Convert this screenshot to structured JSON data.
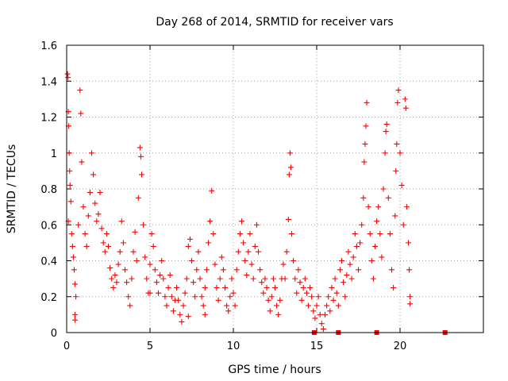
{
  "chart_data": {
    "type": "scatter",
    "title": "Day 268 of 2014, SRMTID for receiver vars",
    "xlabel": "GPS time / hours",
    "ylabel": "SRMTID / TECUs",
    "xlim": [
      0,
      25
    ],
    "ylim": [
      0,
      1.6
    ],
    "x_ticks": [
      0,
      5,
      10,
      15,
      20
    ],
    "x_tick_labels": [
      "0",
      "5",
      "10",
      "15",
      "20"
    ],
    "y_ticks": [
      0,
      0.2,
      0.4,
      0.6,
      0.8,
      1.0,
      1.2,
      1.4,
      1.6
    ],
    "y_tick_labels": [
      "0",
      "0.2",
      "0.4",
      "0.6",
      "0.8",
      "1",
      "1.2",
      "1.4",
      "1.6"
    ],
    "grid": true,
    "marker": "+",
    "color": "#ff0000",
    "series": [
      {
        "name": "SRMTID",
        "points": [
          [
            0.05,
            1.44
          ],
          [
            0.08,
            1.42
          ],
          [
            0.1,
            1.23
          ],
          [
            0.12,
            1.15
          ],
          [
            0.15,
            1.0
          ],
          [
            0.18,
            0.9
          ],
          [
            0.2,
            0.82
          ],
          [
            0.25,
            0.73
          ],
          [
            0.1,
            0.62
          ],
          [
            0.3,
            0.55
          ],
          [
            0.35,
            0.48
          ],
          [
            0.4,
            0.42
          ],
          [
            0.45,
            0.35
          ],
          [
            0.5,
            0.27
          ],
          [
            0.55,
            0.2
          ],
          [
            0.5,
            0.1
          ],
          [
            0.5,
            0.07
          ],
          [
            0.7,
            0.6
          ],
          [
            0.8,
            1.35
          ],
          [
            0.85,
            1.22
          ],
          [
            0.9,
            0.95
          ],
          [
            1.0,
            0.7
          ],
          [
            1.1,
            0.55
          ],
          [
            1.2,
            0.48
          ],
          [
            1.3,
            0.65
          ],
          [
            1.4,
            0.78
          ],
          [
            1.5,
            1.0
          ],
          [
            1.6,
            0.88
          ],
          [
            1.7,
            0.72
          ],
          [
            1.8,
            0.62
          ],
          [
            1.9,
            0.66
          ],
          [
            2.0,
            0.78
          ],
          [
            2.1,
            0.58
          ],
          [
            2.2,
            0.5
          ],
          [
            2.3,
            0.45
          ],
          [
            2.4,
            0.55
          ],
          [
            2.5,
            0.48
          ],
          [
            2.6,
            0.36
          ],
          [
            2.7,
            0.3
          ],
          [
            2.8,
            0.25
          ],
          [
            2.9,
            0.32
          ],
          [
            3.0,
            0.28
          ],
          [
            3.1,
            0.38
          ],
          [
            3.2,
            0.45
          ],
          [
            3.3,
            0.62
          ],
          [
            3.4,
            0.5
          ],
          [
            3.5,
            0.35
          ],
          [
            3.6,
            0.28
          ],
          [
            3.7,
            0.2
          ],
          [
            3.8,
            0.15
          ],
          [
            3.9,
            0.3
          ],
          [
            4.0,
            0.45
          ],
          [
            4.1,
            0.56
          ],
          [
            4.2,
            0.4
          ],
          [
            4.3,
            0.75
          ],
          [
            4.4,
            1.03
          ],
          [
            4.45,
            0.98
          ],
          [
            4.5,
            0.88
          ],
          [
            4.6,
            0.6
          ],
          [
            4.7,
            0.42
          ],
          [
            4.8,
            0.3
          ],
          [
            4.9,
            0.22
          ],
          [
            5.0,
            0.38
          ],
          [
            5.1,
            0.55
          ],
          [
            5.2,
            0.48
          ],
          [
            5.3,
            0.35
          ],
          [
            5.4,
            0.28
          ],
          [
            5.5,
            0.22
          ],
          [
            5.6,
            0.32
          ],
          [
            5.7,
            0.4
          ],
          [
            5.8,
            0.3
          ],
          [
            5.9,
            0.2
          ],
          [
            6.0,
            0.15
          ],
          [
            6.1,
            0.25
          ],
          [
            6.2,
            0.32
          ],
          [
            6.3,
            0.2
          ],
          [
            6.4,
            0.12
          ],
          [
            6.5,
            0.18
          ],
          [
            6.6,
            0.25
          ],
          [
            6.7,
            0.18
          ],
          [
            6.8,
            0.1
          ],
          [
            6.9,
            0.06
          ],
          [
            7.0,
            0.15
          ],
          [
            7.1,
            0.22
          ],
          [
            7.2,
            0.3
          ],
          [
            7.3,
            0.48
          ],
          [
            7.4,
            0.52
          ],
          [
            7.5,
            0.4
          ],
          [
            7.6,
            0.28
          ],
          [
            7.7,
            0.2
          ],
          [
            7.8,
            0.35
          ],
          [
            7.9,
            0.45
          ],
          [
            8.0,
            0.3
          ],
          [
            8.1,
            0.2
          ],
          [
            8.2,
            0.15
          ],
          [
            8.3,
            0.25
          ],
          [
            8.4,
            0.35
          ],
          [
            8.5,
            0.5
          ],
          [
            8.6,
            0.62
          ],
          [
            8.7,
            0.79
          ],
          [
            8.8,
            0.55
          ],
          [
            8.9,
            0.38
          ],
          [
            9.0,
            0.25
          ],
          [
            9.1,
            0.18
          ],
          [
            9.2,
            0.3
          ],
          [
            9.3,
            0.42
          ],
          [
            9.4,
            0.35
          ],
          [
            9.5,
            0.25
          ],
          [
            9.6,
            0.15
          ],
          [
            9.7,
            0.12
          ],
          [
            9.8,
            0.2
          ],
          [
            9.9,
            0.3
          ],
          [
            10.0,
            0.22
          ],
          [
            10.1,
            0.15
          ],
          [
            10.2,
            0.35
          ],
          [
            10.3,
            0.45
          ],
          [
            10.4,
            0.55
          ],
          [
            10.5,
            0.62
          ],
          [
            10.6,
            0.5
          ],
          [
            10.7,
            0.4
          ],
          [
            10.8,
            0.32
          ],
          [
            10.9,
            0.45
          ],
          [
            11.0,
            0.55
          ],
          [
            11.1,
            0.38
          ],
          [
            11.2,
            0.3
          ],
          [
            11.3,
            0.48
          ],
          [
            11.4,
            0.6
          ],
          [
            11.5,
            0.45
          ],
          [
            11.6,
            0.35
          ],
          [
            11.7,
            0.28
          ],
          [
            11.8,
            0.22
          ],
          [
            11.9,
            0.3
          ],
          [
            12.0,
            0.25
          ],
          [
            12.1,
            0.18
          ],
          [
            12.2,
            0.12
          ],
          [
            12.3,
            0.2
          ],
          [
            12.4,
            0.3
          ],
          [
            12.5,
            0.25
          ],
          [
            12.6,
            0.15
          ],
          [
            12.7,
            0.1
          ],
          [
            12.8,
            0.18
          ],
          [
            12.9,
            0.3
          ],
          [
            13.0,
            0.38
          ],
          [
            13.1,
            0.3
          ],
          [
            13.2,
            0.45
          ],
          [
            13.3,
            0.63
          ],
          [
            13.35,
            0.88
          ],
          [
            13.4,
            1.0
          ],
          [
            13.45,
            0.92
          ],
          [
            13.5,
            0.55
          ],
          [
            13.6,
            0.4
          ],
          [
            13.7,
            0.3
          ],
          [
            13.8,
            0.22
          ],
          [
            13.9,
            0.35
          ],
          [
            14.0,
            0.28
          ],
          [
            14.1,
            0.18
          ],
          [
            14.2,
            0.25
          ],
          [
            14.3,
            0.3
          ],
          [
            14.4,
            0.22
          ],
          [
            14.5,
            0.15
          ],
          [
            14.6,
            0.25
          ],
          [
            14.7,
            0.2
          ],
          [
            14.8,
            0.12
          ],
          [
            14.9,
            0.08
          ],
          [
            15.0,
            0.15
          ],
          [
            15.1,
            0.2
          ],
          [
            15.2,
            0.1
          ],
          [
            15.3,
            0.05
          ],
          [
            15.4,
            0.02
          ],
          [
            15.5,
            0.1
          ],
          [
            15.6,
            0.15
          ],
          [
            15.7,
            0.2
          ],
          [
            15.8,
            0.12
          ],
          [
            15.9,
            0.25
          ],
          [
            16.0,
            0.18
          ],
          [
            16.1,
            0.3
          ],
          [
            16.2,
            0.22
          ],
          [
            16.3,
            0.15
          ],
          [
            16.4,
            0.35
          ],
          [
            16.5,
            0.4
          ],
          [
            16.6,
            0.28
          ],
          [
            16.7,
            0.2
          ],
          [
            16.8,
            0.32
          ],
          [
            16.9,
            0.45
          ],
          [
            17.0,
            0.38
          ],
          [
            17.1,
            0.3
          ],
          [
            17.2,
            0.42
          ],
          [
            17.3,
            0.55
          ],
          [
            17.4,
            0.48
          ],
          [
            17.5,
            0.35
          ],
          [
            17.6,
            0.5
          ],
          [
            17.7,
            0.6
          ],
          [
            17.8,
            0.75
          ],
          [
            17.85,
            0.95
          ],
          [
            17.9,
            1.05
          ],
          [
            17.95,
            1.15
          ],
          [
            18.0,
            1.28
          ],
          [
            18.1,
            0.7
          ],
          [
            18.2,
            0.55
          ],
          [
            18.3,
            0.4
          ],
          [
            18.4,
            0.3
          ],
          [
            18.5,
            0.48
          ],
          [
            18.6,
            0.62
          ],
          [
            18.7,
            0.7
          ],
          [
            18.8,
            0.55
          ],
          [
            18.9,
            0.42
          ],
          [
            19.0,
            0.8
          ],
          [
            19.1,
            1.0
          ],
          [
            19.15,
            1.12
          ],
          [
            19.2,
            1.16
          ],
          [
            19.3,
            0.75
          ],
          [
            19.4,
            0.55
          ],
          [
            19.5,
            0.35
          ],
          [
            19.6,
            0.25
          ],
          [
            19.7,
            0.65
          ],
          [
            19.75,
            0.9
          ],
          [
            19.8,
            1.05
          ],
          [
            19.85,
            1.28
          ],
          [
            19.9,
            1.35
          ],
          [
            20.0,
            1.0
          ],
          [
            20.1,
            0.82
          ],
          [
            20.2,
            0.6
          ],
          [
            20.3,
            1.3
          ],
          [
            20.35,
            1.25
          ],
          [
            20.4,
            0.7
          ],
          [
            20.5,
            0.5
          ],
          [
            20.55,
            0.35
          ],
          [
            20.6,
            0.2
          ],
          [
            20.6,
            0.16
          ],
          [
            5.0,
            0.22
          ],
          [
            7.3,
            0.09
          ],
          [
            8.3,
            0.1
          ]
        ]
      },
      {
        "name": "SRMTID (zero values)",
        "points": [
          [
            14.85,
            0.0
          ],
          [
            16.3,
            0.0
          ],
          [
            18.6,
            0.0
          ],
          [
            22.7,
            0.0
          ]
        ]
      }
    ]
  }
}
